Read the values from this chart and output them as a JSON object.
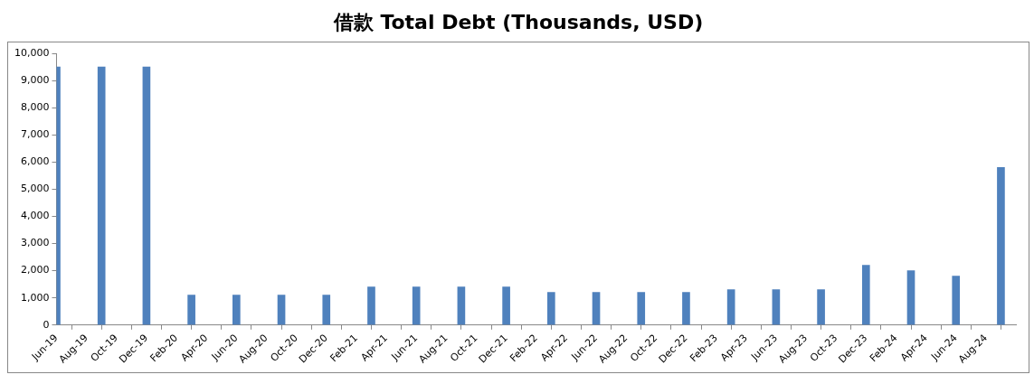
{
  "chart_data": {
    "type": "bar",
    "title": "借款 Total Debt (Thousands, USD)",
    "x": [
      "2019-06",
      "2019-09",
      "2019-12",
      "2020-03",
      "2020-06",
      "2020-09",
      "2020-12",
      "2021-03",
      "2021-06",
      "2021-09",
      "2021-12",
      "2022-03",
      "2022-06",
      "2022-09",
      "2022-12",
      "2023-03",
      "2023-06",
      "2023-09",
      "2023-12",
      "2024-03",
      "2024-06",
      "2024-09"
    ],
    "values": [
      9500,
      9500,
      9500,
      1100,
      1100,
      1100,
      1100,
      1400,
      1400,
      1400,
      1400,
      1200,
      1200,
      1200,
      1200,
      1300,
      1300,
      1300,
      2200,
      2000,
      1800,
      5800
    ],
    "color": "#4f81bd",
    "xlim": [
      "2019-06",
      "2024-10"
    ],
    "xticks": [
      {
        "value": "2019-06",
        "label": "Jun-19"
      },
      {
        "value": "2019-08",
        "label": "Aug-19"
      },
      {
        "value": "2019-10",
        "label": "Oct-19"
      },
      {
        "value": "2019-12",
        "label": "Dec-19"
      },
      {
        "value": "2020-02",
        "label": "Feb-20"
      },
      {
        "value": "2020-04",
        "label": "Apr-20"
      },
      {
        "value": "2020-06",
        "label": "Jun-20"
      },
      {
        "value": "2020-08",
        "label": "Aug-20"
      },
      {
        "value": "2020-10",
        "label": "Oct-20"
      },
      {
        "value": "2020-12",
        "label": "Dec-20"
      },
      {
        "value": "2021-02",
        "label": "Feb-21"
      },
      {
        "value": "2021-04",
        "label": "Apr-21"
      },
      {
        "value": "2021-06",
        "label": "Jun-21"
      },
      {
        "value": "2021-08",
        "label": "Aug-21"
      },
      {
        "value": "2021-10",
        "label": "Oct-21"
      },
      {
        "value": "2021-12",
        "label": "Dec-21"
      },
      {
        "value": "2022-02",
        "label": "Feb-22"
      },
      {
        "value": "2022-04",
        "label": "Apr-22"
      },
      {
        "value": "2022-06",
        "label": "Jun-22"
      },
      {
        "value": "2022-08",
        "label": "Aug-22"
      },
      {
        "value": "2022-10",
        "label": "Oct-22"
      },
      {
        "value": "2022-12",
        "label": "Dec-22"
      },
      {
        "value": "2023-02",
        "label": "Feb-23"
      },
      {
        "value": "2023-04",
        "label": "Apr-23"
      },
      {
        "value": "2023-06",
        "label": "Jun-23"
      },
      {
        "value": "2023-08",
        "label": "Aug-23"
      },
      {
        "value": "2023-10",
        "label": "Oct-23"
      },
      {
        "value": "2023-12",
        "label": "Dec-23"
      },
      {
        "value": "2024-02",
        "label": "Feb-24"
      },
      {
        "value": "2024-04",
        "label": "Apr-24"
      },
      {
        "value": "2024-06",
        "label": "Jun-24"
      },
      {
        "value": "2024-08",
        "label": "Aug-24"
      }
    ],
    "ylim": [
      0,
      10000
    ],
    "yticks": [
      0,
      {
        "value": 1000,
        "label": "1,000"
      },
      {
        "value": 2000,
        "label": "2,000"
      },
      {
        "value": 3000,
        "label": "3,000"
      },
      {
        "value": 4000,
        "label": "4,000"
      },
      {
        "value": 5000,
        "label": "5,000"
      },
      {
        "value": 6000,
        "label": "6,000"
      },
      {
        "value": 7000,
        "label": "7,000"
      },
      {
        "value": 8000,
        "label": "8,000"
      },
      {
        "value": 9000,
        "label": "9,000"
      },
      {
        "value": 10000,
        "label": "10,000"
      }
    ],
    "grid": false,
    "legend": false
  }
}
